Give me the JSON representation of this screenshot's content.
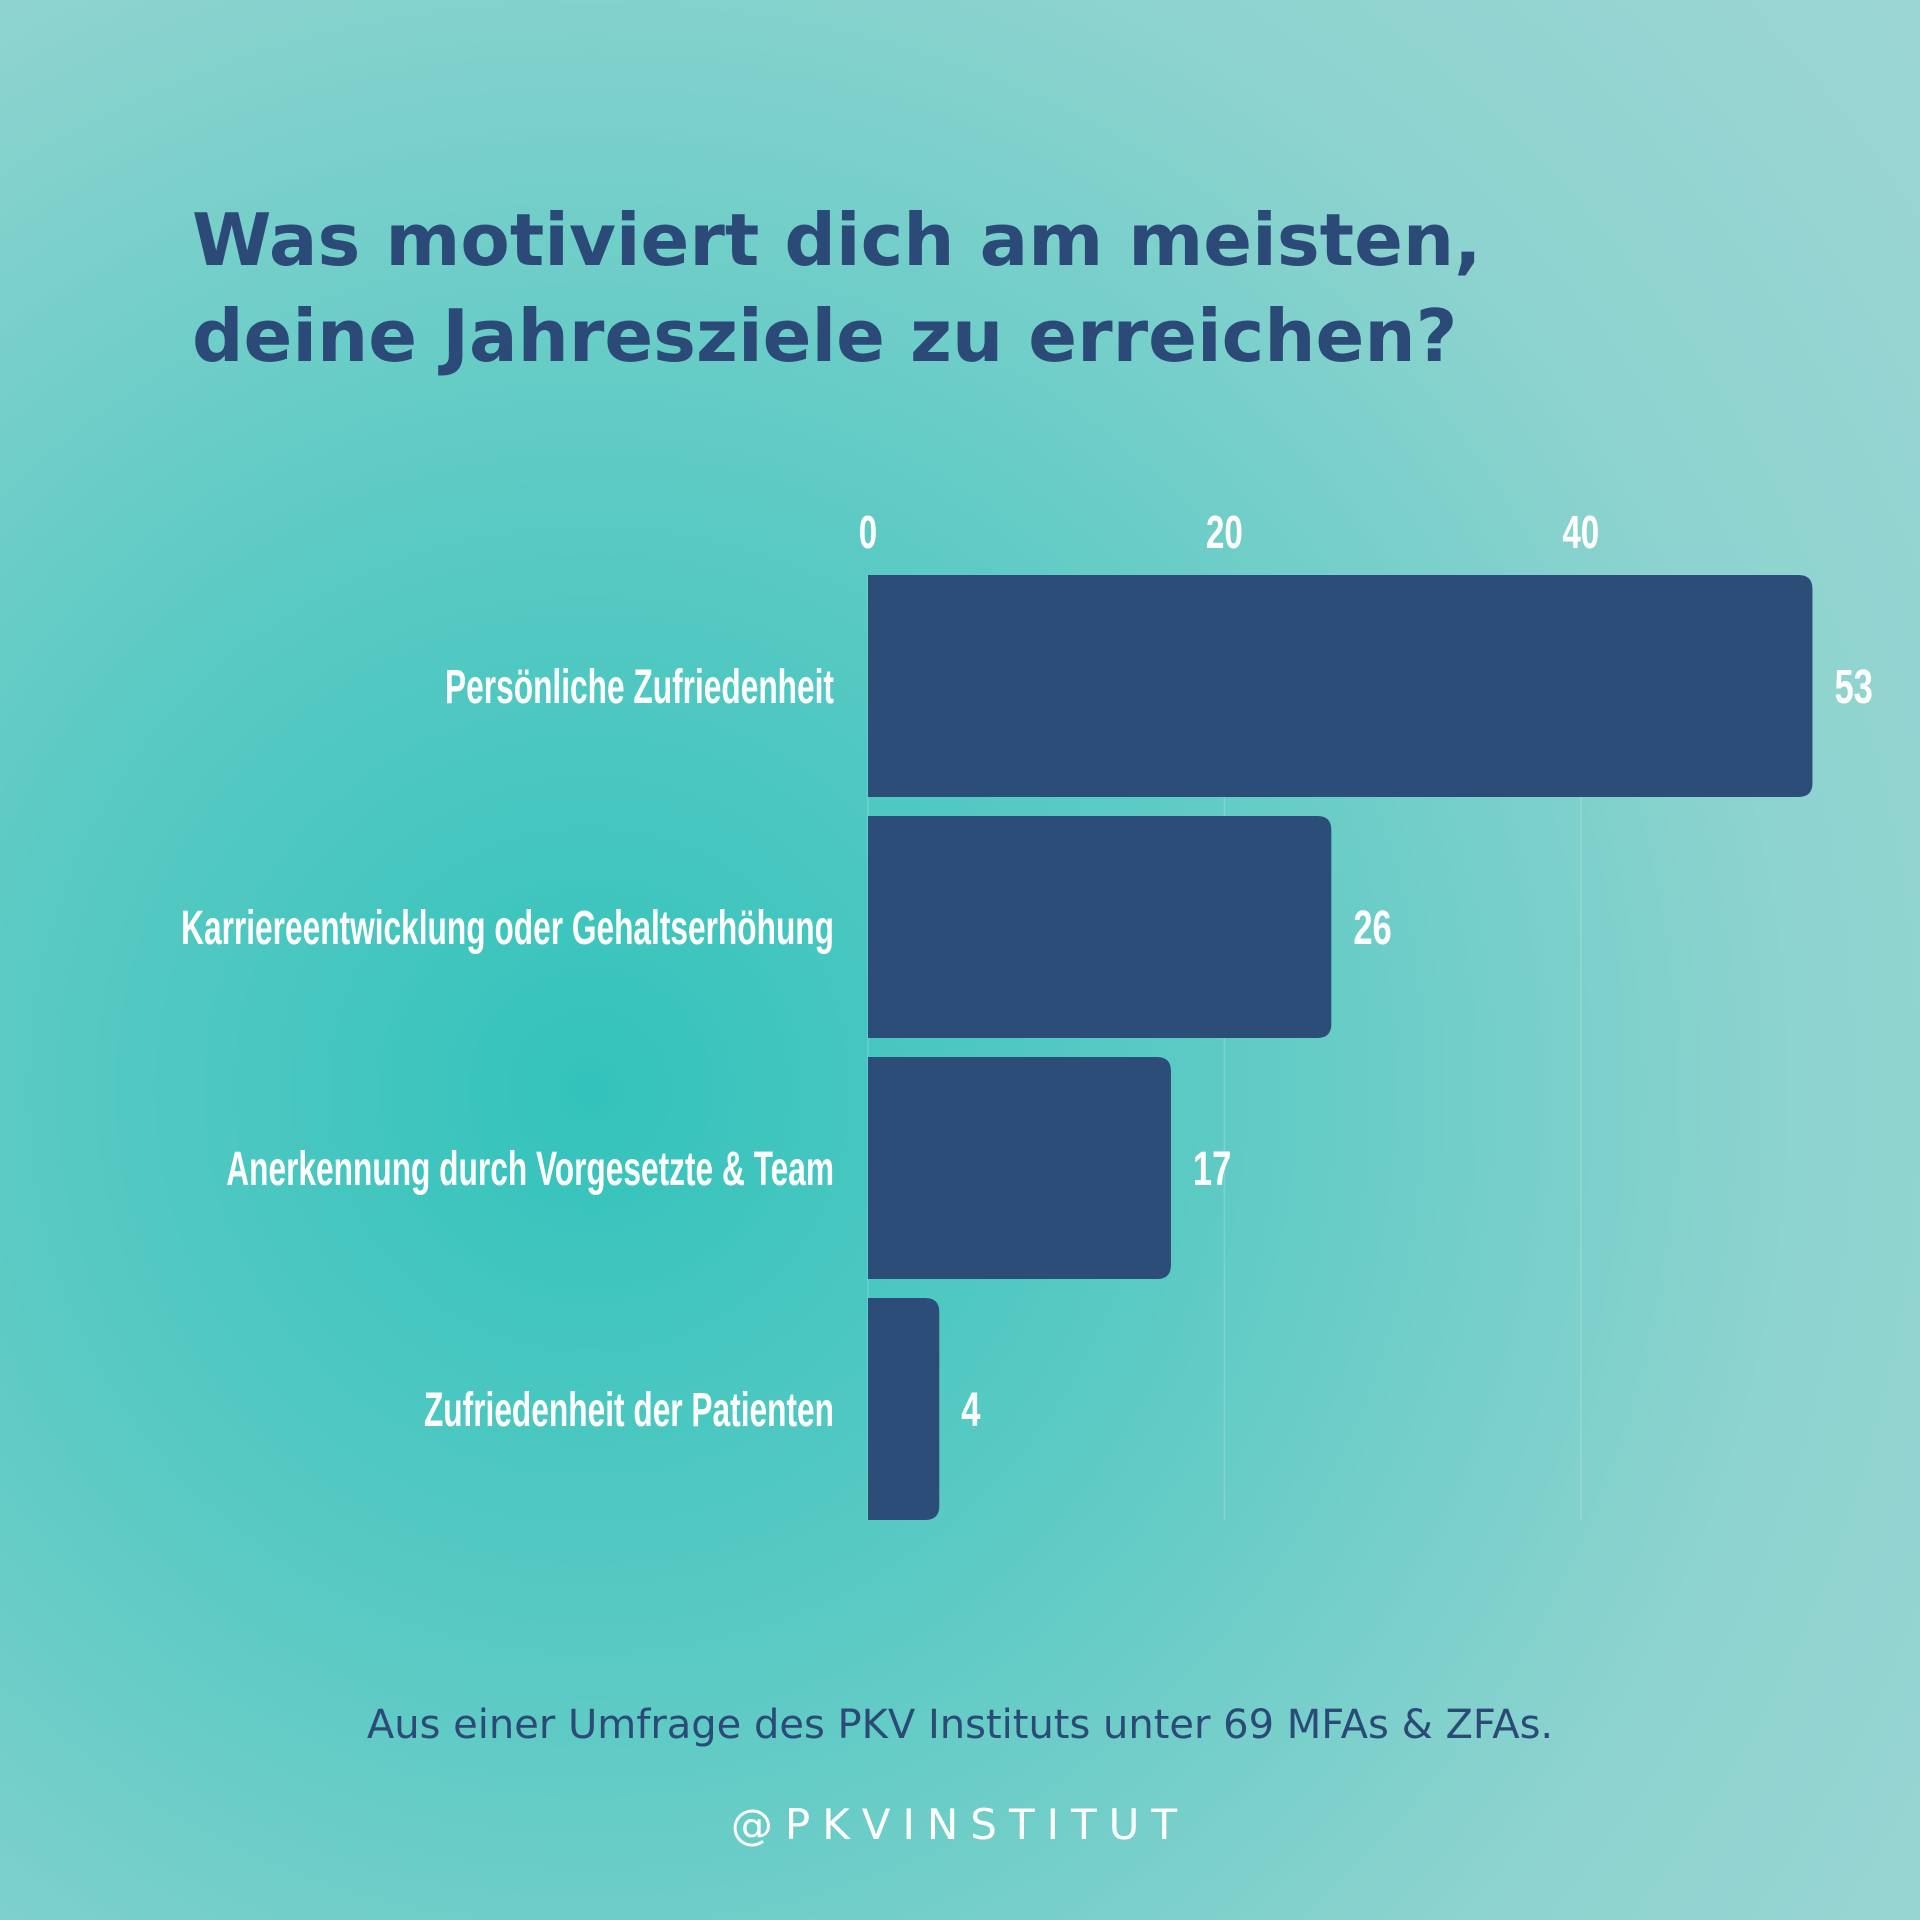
{
  "chart_data": {
    "type": "bar",
    "orientation": "horizontal",
    "title": "Was motiviert dich am meisten, deine Jahresziele zu erreichen?",
    "title_lines": [
      "Was motiviert dich am meisten,",
      "deine Jahresziele zu erreichen?"
    ],
    "categories": [
      "Persönliche Zufriedenheit",
      "Karriereentwicklung oder Gehaltserhöhung",
      "Anerkennung durch Vorgesetzte & Team",
      "Zufriedenheit der Patienten"
    ],
    "values": [
      53,
      26,
      17,
      4
    ],
    "data_labels": [
      "53",
      "26",
      "17",
      "4"
    ],
    "x_ticks": [
      0,
      20,
      40
    ],
    "x_tick_labels": [
      "0",
      "20",
      "40"
    ],
    "xlim": [
      0,
      53
    ],
    "axis_position": "top",
    "grid": true,
    "xlabel": "",
    "ylabel": "",
    "colors": {
      "bar": "#2b4d78",
      "text": "#ffffff",
      "title": "#2b4a77"
    }
  },
  "footnote": "Aus einer Umfrage des PKV Instituts unter 69 MFAs & ZFAs.",
  "handle": "@PKVINSTITUT"
}
